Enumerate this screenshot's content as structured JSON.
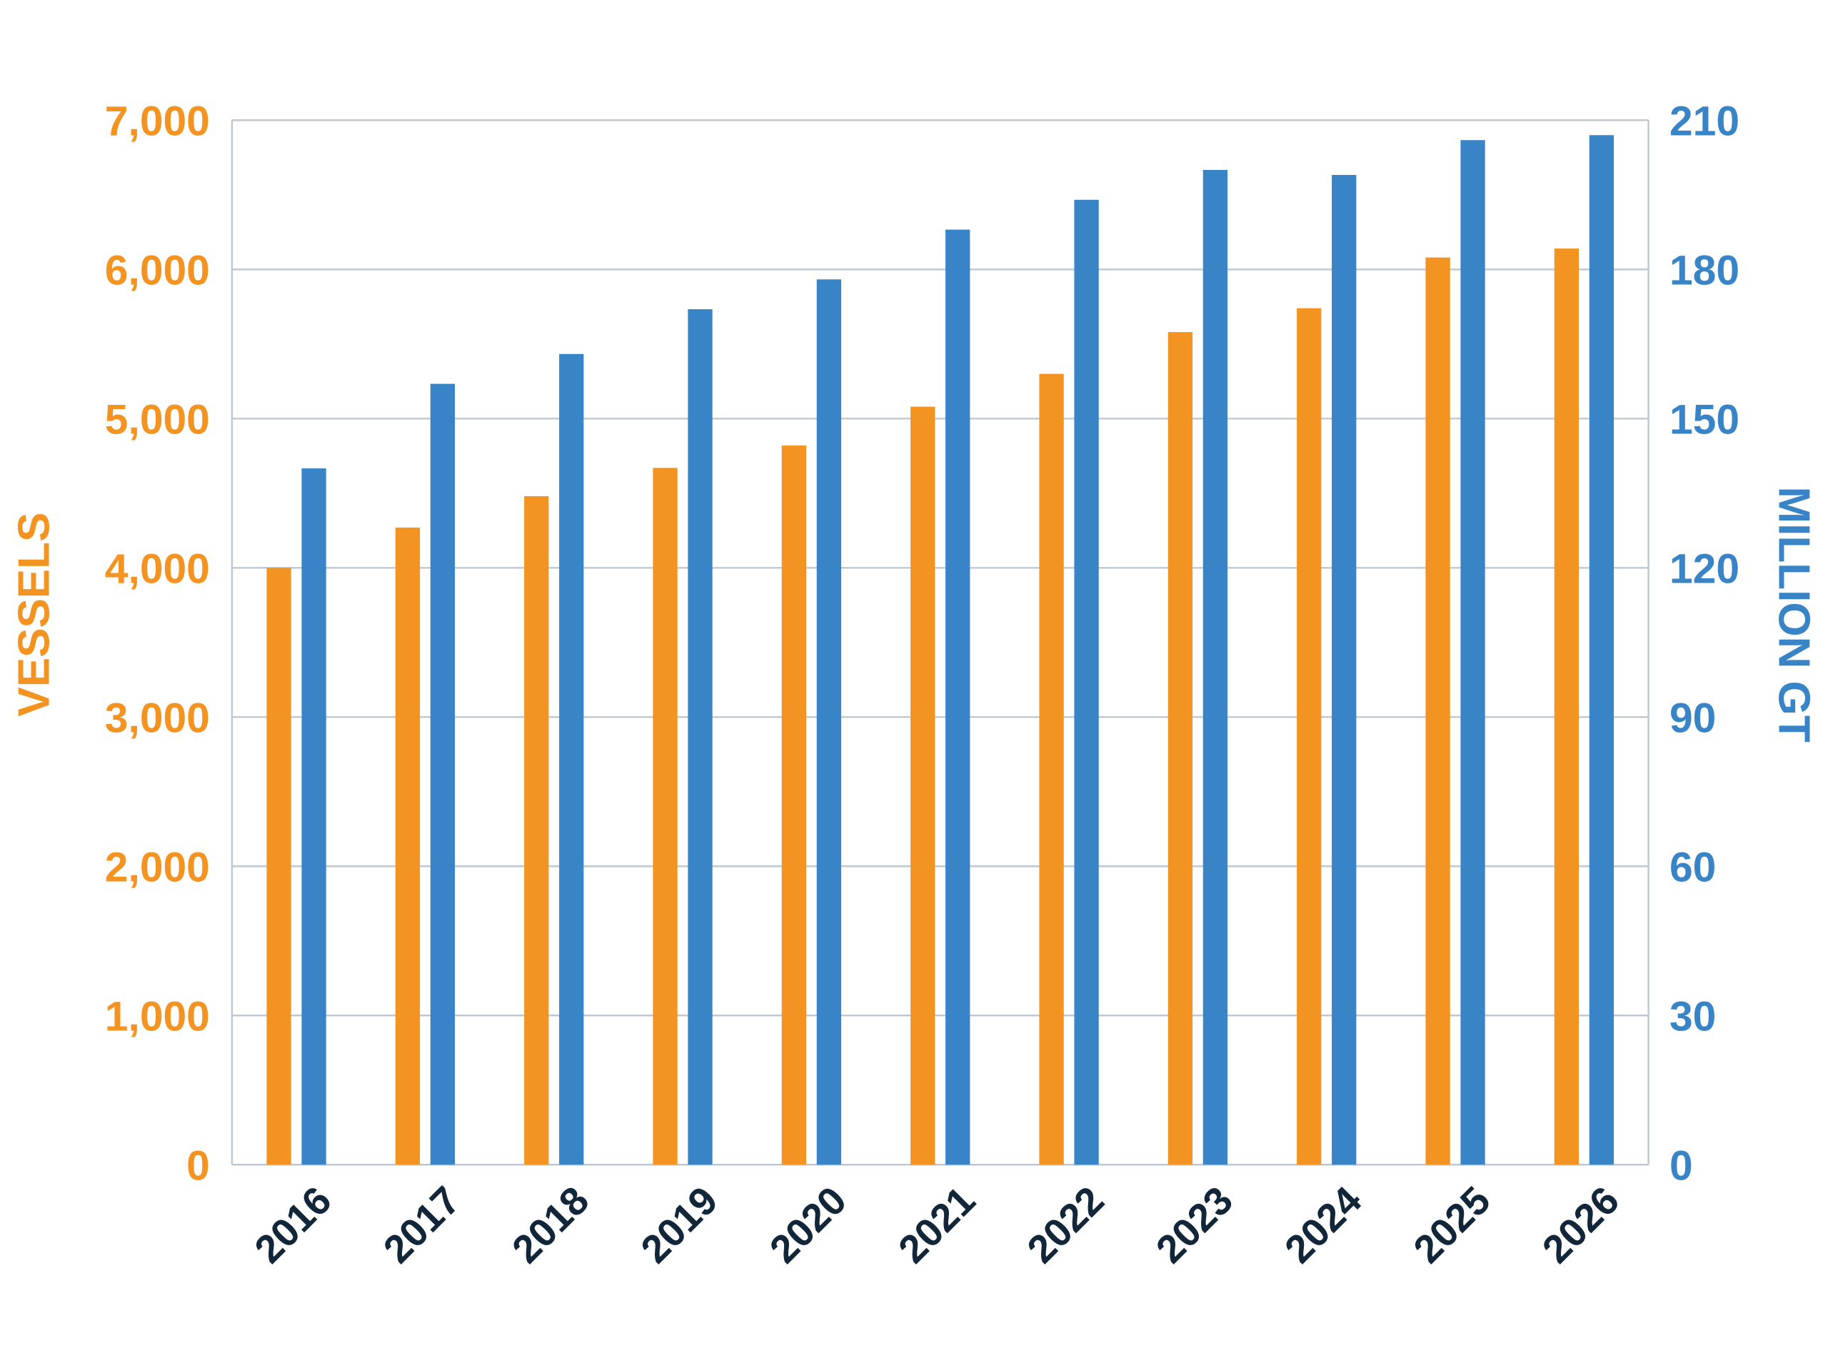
{
  "chart_data": {
    "type": "bar",
    "categories": [
      "2016",
      "2017",
      "2018",
      "2019",
      "2020",
      "2021",
      "2022",
      "2023",
      "2024",
      "2025",
      "2026"
    ],
    "series": [
      {
        "axis": "left",
        "color": "#F39321",
        "values": [
          4000,
          4270,
          4480,
          4670,
          4820,
          5080,
          5300,
          5580,
          5740,
          6080,
          6140
        ]
      },
      {
        "axis": "right",
        "color": "#3884C6",
        "values": [
          140,
          157,
          163,
          172,
          178,
          188,
          194,
          200,
          199,
          206,
          207
        ]
      }
    ],
    "ylabel": "VESSELS",
    "ylabel_right": "MILLION GT",
    "ylim": [
      0,
      7000
    ],
    "ylim_right": [
      0,
      210
    ],
    "yticks": [
      "0",
      "1,000",
      "2,000",
      "3,000",
      "4,000",
      "5,000",
      "6,000",
      "7,000"
    ],
    "yticks_right": [
      "0",
      "30",
      "60",
      "90",
      "120",
      "150",
      "180",
      "210"
    ],
    "grid": true,
    "colors": {
      "left_axis": "#F39321",
      "right_axis": "#3884C6",
      "xtick": "#12263A",
      "grid": "#BCC8D3"
    }
  }
}
